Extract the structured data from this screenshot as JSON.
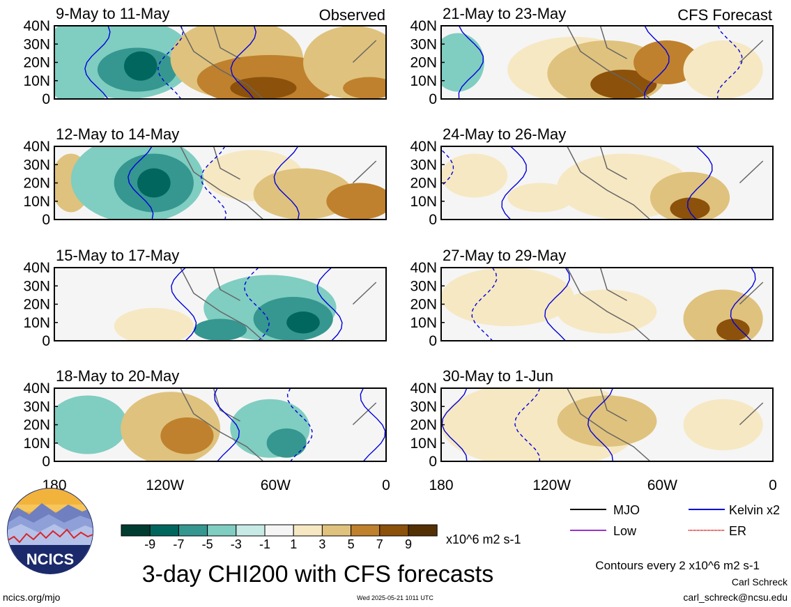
{
  "chart_data": {
    "type": "heatmap",
    "title": "3-day CHI200 with CFS forecasts",
    "colorbar": {
      "unit": "x10^6 m2 s-1",
      "tick_labels": [
        "-9",
        "-7",
        "-5",
        "-3",
        "-1",
        "1",
        "3",
        "5",
        "7",
        "9"
      ],
      "bins": [
        {
          "range": "<-9",
          "color": "#003c30"
        },
        {
          "range": "-9 to -7",
          "color": "#01665e"
        },
        {
          "range": "-7 to -5",
          "color": "#35978f"
        },
        {
          "range": "-5 to -3",
          "color": "#80cdc1"
        },
        {
          "range": "-3 to -1",
          "color": "#c7eae5"
        },
        {
          "range": "-1 to 1",
          "color": "#f5f5f5"
        },
        {
          "range": "1 to 3",
          "color": "#f6e8c3"
        },
        {
          "range": "3 to 5",
          "color": "#dfc27d"
        },
        {
          "range": "5 to 7",
          "color": "#bf812d"
        },
        {
          "range": "7 to 9",
          "color": "#8c510a"
        },
        {
          "range": ">9",
          "color": "#543005"
        }
      ]
    },
    "x_axis": {
      "range": [
        180,
        360
      ],
      "tick_labels": [
        "180",
        "120W",
        "60W",
        "0"
      ]
    },
    "y_axis": {
      "range": [
        0,
        40
      ],
      "tick_labels": [
        "40N",
        "30N",
        "20N",
        "10N",
        "0"
      ]
    },
    "columns": [
      {
        "label": "Observed",
        "label_position": "top-right of first panel"
      },
      {
        "label": "CFS Forecast",
        "label_position": "top-right of first panel"
      }
    ],
    "panels": [
      {
        "column": 0,
        "title": "9-May to 11-May"
      },
      {
        "column": 0,
        "title": "12-May to 14-May"
      },
      {
        "column": 0,
        "title": "15-May to 17-May"
      },
      {
        "column": 0,
        "title": "18-May to 20-May"
      },
      {
        "column": 1,
        "title": "21-May to 23-May"
      },
      {
        "column": 1,
        "title": "24-May to 26-May"
      },
      {
        "column": 1,
        "title": "27-May to 29-May"
      },
      {
        "column": 1,
        "title": "30-May to 1-Jun"
      }
    ],
    "legend": [
      {
        "label": "MJO",
        "color": "#000000"
      },
      {
        "label": "Kelvin x2",
        "color": "#0000dd"
      },
      {
        "label": "Low",
        "color": "#9933cc"
      },
      {
        "label": "ER",
        "color": "#dd0000"
      }
    ],
    "contour_note": "Contours every 2 x10^6 m2 s-1"
  },
  "footer": {
    "site": "ncics.org/mjo",
    "timestamp": "Wed 2025-05-21 1011 UTC",
    "author": "Carl Schreck",
    "email": "carl_schreck@ncsu.edu"
  },
  "logo": {
    "text": "NCICS"
  }
}
